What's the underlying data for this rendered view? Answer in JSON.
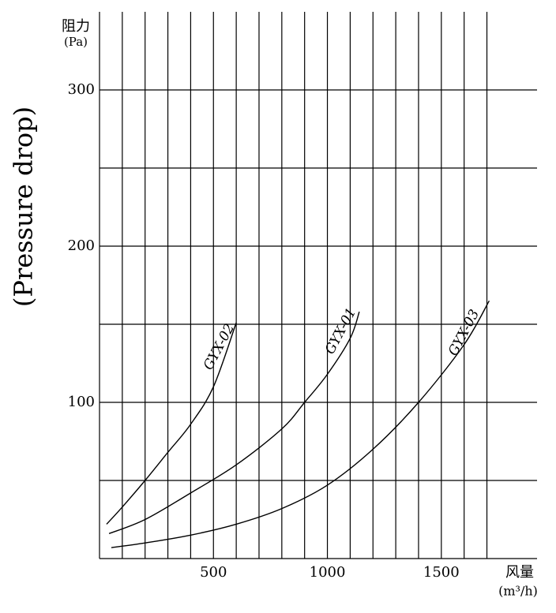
{
  "chart_data": {
    "type": "line",
    "y_axis_label": "阻力",
    "y_axis_unit": "(Pa)",
    "y_axis_title": "(Pressure drop)",
    "x_axis_label": "风量",
    "x_axis_unit": "(m³/h)",
    "xlim": [
      0,
      1920
    ],
    "ylim": [
      0,
      350
    ],
    "xticks": [
      500,
      1000,
      1500
    ],
    "yticks": [
      100,
      200,
      300
    ],
    "x_grid": [
      100,
      200,
      300,
      400,
      500,
      600,
      700,
      800,
      900,
      1000,
      1100,
      1200,
      1300,
      1400,
      1500,
      1600,
      1700
    ],
    "y_grid": [
      50,
      100,
      150,
      200,
      250,
      300
    ],
    "series": [
      {
        "name": "GYX-02",
        "color": "#000000",
        "x": [
          31,
          100,
          200,
          300,
          400,
          500,
          600
        ],
        "values": [
          22,
          33,
          50,
          68,
          86,
          110,
          151
        ]
      },
      {
        "name": "GYX-01",
        "color": "#000000",
        "x": [
          42,
          200,
          400,
          600,
          800,
          900,
          1000,
          1100,
          1140
        ],
        "values": [
          16,
          25,
          42,
          60,
          83,
          100,
          118,
          141,
          158
        ]
      },
      {
        "name": "GYX-03",
        "color": "#000000",
        "x": [
          52,
          200,
          400,
          600,
          800,
          1000,
          1200,
          1400,
          1600,
          1710
        ],
        "values": [
          7,
          10,
          15,
          22,
          32,
          47,
          70,
          100,
          137,
          165
        ]
      }
    ]
  }
}
